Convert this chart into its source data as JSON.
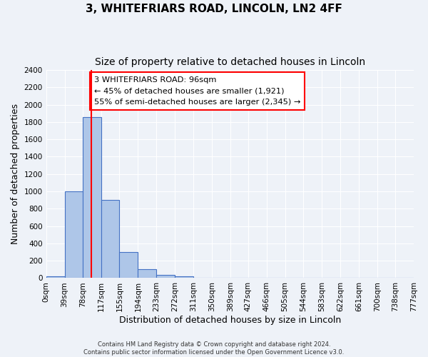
{
  "title": "3, WHITEFRIARS ROAD, LINCOLN, LN2 4FF",
  "subtitle": "Size of property relative to detached houses in Lincoln",
  "xlabel": "Distribution of detached houses by size in Lincoln",
  "ylabel": "Number of detached properties",
  "footer_line1": "Contains HM Land Registry data © Crown copyright and database right 2024.",
  "footer_line2": "Contains public sector information licensed under the Open Government Licence v3.0.",
  "bin_edges": [
    0,
    39,
    78,
    117,
    155,
    194,
    233,
    272,
    311,
    350,
    389,
    427,
    466,
    505,
    544,
    583,
    622,
    661,
    700,
    738,
    777
  ],
  "bin_labels": [
    "0sqm",
    "39sqm",
    "78sqm",
    "117sqm",
    "155sqm",
    "194sqm",
    "233sqm",
    "272sqm",
    "311sqm",
    "350sqm",
    "389sqm",
    "427sqm",
    "466sqm",
    "505sqm",
    "544sqm",
    "583sqm",
    "622sqm",
    "661sqm",
    "700sqm",
    "738sqm",
    "777sqm"
  ],
  "counts": [
    20,
    1000,
    1860,
    900,
    300,
    100,
    40,
    20,
    0,
    0,
    0,
    0,
    0,
    0,
    0,
    0,
    0,
    0,
    0,
    0
  ],
  "bar_color": "#aec6e8",
  "bar_edge_color": "#4472c4",
  "red_line_x": 96,
  "ylim": [
    0,
    2400
  ],
  "yticks": [
    0,
    200,
    400,
    600,
    800,
    1000,
    1200,
    1400,
    1600,
    1800,
    2000,
    2200,
    2400
  ],
  "annotation_title": "3 WHITEFRIARS ROAD: 96sqm",
  "annotation_line1": "← 45% of detached houses are smaller (1,921)",
  "annotation_line2": "55% of semi-detached houses are larger (2,345) →",
  "background_color": "#eef2f8",
  "grid_color": "#ffffff",
  "title_fontsize": 11,
  "subtitle_fontsize": 10,
  "axis_fontsize": 9,
  "tick_fontsize": 7.5
}
